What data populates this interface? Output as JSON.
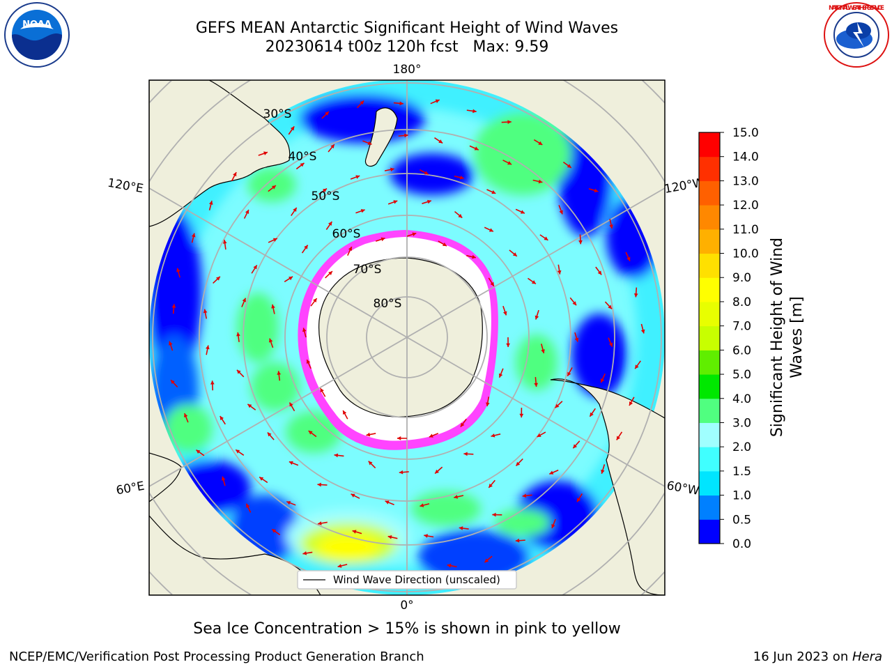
{
  "header": {
    "title_line1": "GEFS MEAN Antarctic Significant Height of Wind Waves",
    "title_line2": "20230614 t00z 120h fcst   Max: 9.59"
  },
  "logos": {
    "noara": "NOAA",
    "nws": "NATIONAL WEATHER SERVICE"
  },
  "map": {
    "lon_labels": {
      "top": "180°",
      "bottom": "0°",
      "left_upper": "120°E",
      "left_lower": "60°E",
      "right_upper": "120°W",
      "right_lower": "60°W"
    },
    "lat_labels": [
      "30°S",
      "40°S",
      "50°S",
      "60°S",
      "70°S",
      "80°S"
    ],
    "legend_label": "Wind Wave Direction (unscaled)"
  },
  "colorbar": {
    "label_line1": "Significant Height of Wind",
    "label_line2": "Waves [m]",
    "ticks": [
      "0.0",
      "0.5",
      "1.0",
      "1.5",
      "2.0",
      "3.0",
      "4.0",
      "5.0",
      "6.0",
      "7.0",
      "8.0",
      "9.0",
      "10.0",
      "11.0",
      "12.0",
      "13.0",
      "14.0",
      "15.0"
    ],
    "colors": [
      "#0000ff",
      "#0080ff",
      "#00e5ff",
      "#40ffff",
      "#a0ffff",
      "#50ff80",
      "#00e800",
      "#60ee00",
      "#c8ff00",
      "#e8ff00",
      "#ffff00",
      "#ffe000",
      "#ffb000",
      "#ff8800",
      "#ff6000",
      "#ff3000",
      "#ff0000"
    ]
  },
  "caption": "Sea Ice Concentration > 15% is shown in pink to yellow",
  "footer": {
    "left": "NCEP/EMC/Verification Post Processing Product Generation Branch",
    "right_prefix": "16 Jun 2023 on ",
    "right_host": "Hera"
  }
}
